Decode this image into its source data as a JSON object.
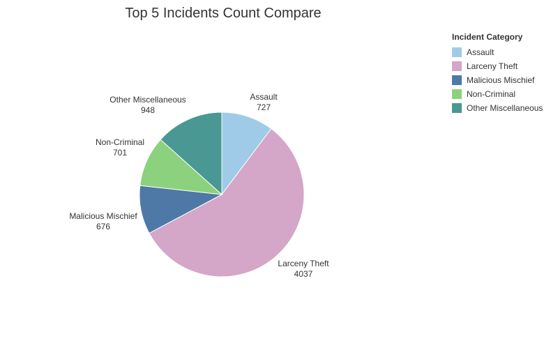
{
  "chart_data": {
    "type": "pie",
    "title": "Top 5 Incidents Count Compare",
    "legend_title": "Incident Category",
    "legend_position": "top-right",
    "slices": [
      {
        "label": "Assault",
        "value": 727,
        "color": "#A0CBE8"
      },
      {
        "label": "Larceny Theft",
        "value": 4037,
        "color": "#D4A6C8"
      },
      {
        "label": "Malicious Mischief",
        "value": 676,
        "color": "#4E79A7"
      },
      {
        "label": "Non-Criminal",
        "value": 701,
        "color": "#8CD17D"
      },
      {
        "label": "Other Miscellaneous",
        "value": 948,
        "color": "#499894"
      }
    ]
  }
}
